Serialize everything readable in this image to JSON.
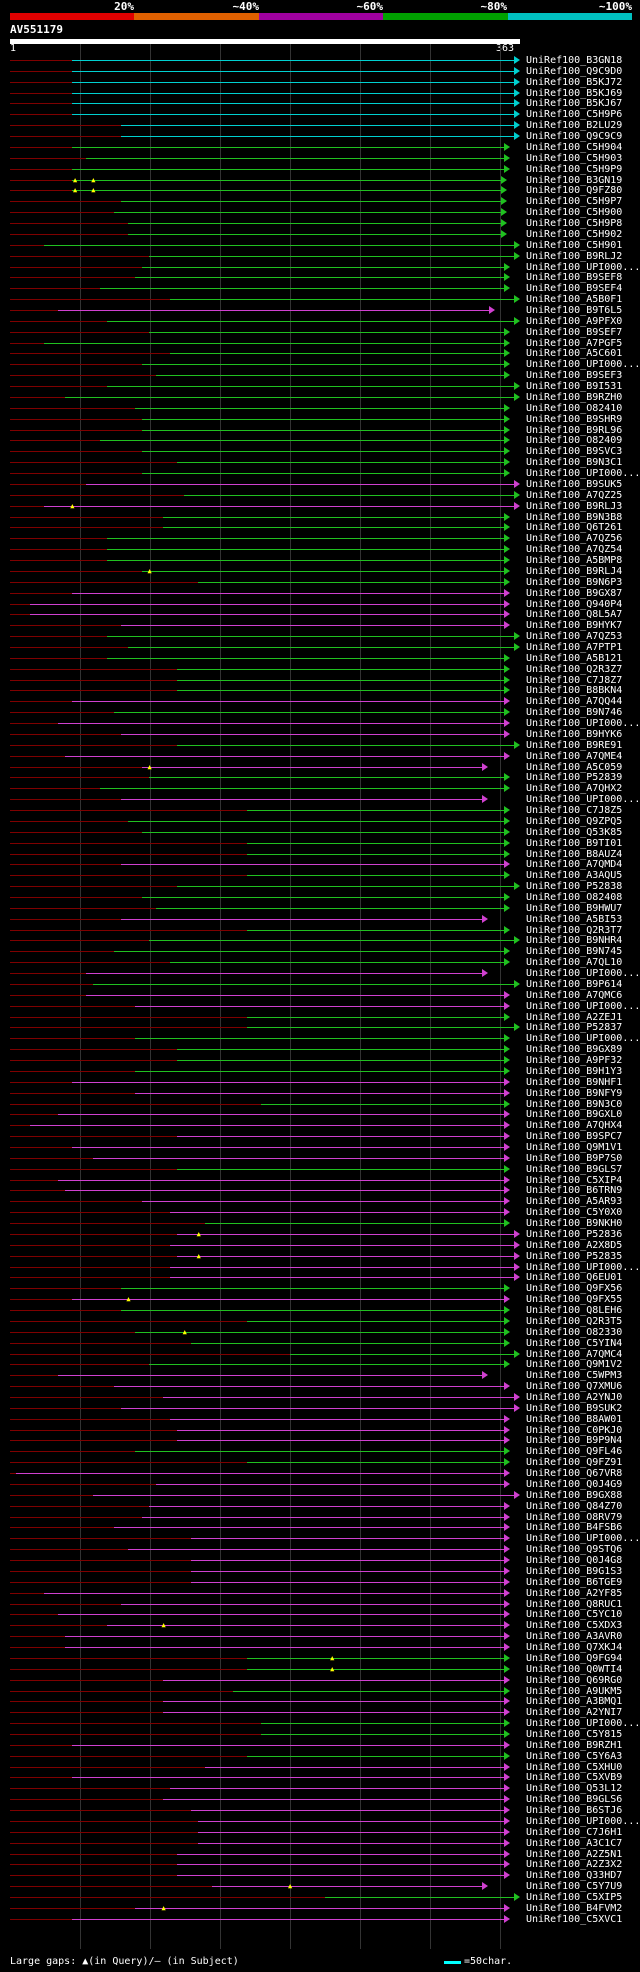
{
  "header": {
    "percent_labels": [
      "20%",
      "~40%",
      "~60%",
      "~80%",
      "~100%"
    ],
    "percent_colors": [
      "#e00000",
      "#e06000",
      "#a000a0",
      "#00a000",
      "#00c0c0"
    ],
    "query_id": "AV551179",
    "ruler_start": "1",
    "ruler_end": "363"
  },
  "footer": {
    "gap_text": "Large gaps: ▲(in Query)/– (in Subject)",
    "legend_text": "=50char."
  },
  "colors": {
    "cyan": "#00d0d0",
    "green": "#20c020",
    "magenta": "#d040d0",
    "prefix": "#7f0000",
    "gap": "#ffff00"
  },
  "hits": [
    {
      "label": "UniRef100_B3GN18",
      "color": "cyan",
      "start": 45,
      "end": 363
    },
    {
      "label": "UniRef100_Q9C9D0",
      "color": "cyan",
      "start": 45,
      "end": 363
    },
    {
      "label": "UniRef100_B5KJ72",
      "color": "cyan",
      "start": 45,
      "end": 363
    },
    {
      "label": "UniRef100_B5KJ69",
      "color": "cyan",
      "start": 45,
      "end": 363
    },
    {
      "label": "UniRef100_B5KJ67",
      "color": "cyan",
      "start": 45,
      "end": 363
    },
    {
      "label": "UniRef100_C5H9P6",
      "color": "cyan",
      "start": 45,
      "end": 363
    },
    {
      "label": "UniRef100_B2LU29",
      "color": "cyan",
      "start": 80,
      "end": 363
    },
    {
      "label": "UniRef100_Q9C9C9",
      "color": "cyan",
      "start": 80,
      "end": 363
    },
    {
      "label": "UniRef100_C5H904",
      "color": "green",
      "start": 45,
      "end": 356
    },
    {
      "label": "UniRef100_C5H903",
      "color": "green",
      "start": 55,
      "end": 356
    },
    {
      "label": "UniRef100_C5H9P9",
      "color": "green",
      "start": 45,
      "end": 356
    },
    {
      "label": "UniRef100_B3GN19",
      "color": "green",
      "start": 45,
      "end": 354,
      "gaps": [
        47,
        60
      ]
    },
    {
      "label": "UniRef100_Q9FZ80",
      "color": "green",
      "start": 45,
      "end": 354,
      "gaps": [
        47,
        60
      ]
    },
    {
      "label": "UniRef100_C5H9P7",
      "color": "green",
      "start": 80,
      "end": 354
    },
    {
      "label": "UniRef100_C5H900",
      "color": "green",
      "start": 75,
      "end": 354
    },
    {
      "label": "UniRef100_C5H9P8",
      "color": "green",
      "start": 85,
      "end": 354
    },
    {
      "label": "UniRef100_C5H902",
      "color": "green",
      "start": 85,
      "end": 354
    },
    {
      "label": "UniRef100_C5H901",
      "color": "green",
      "start": 25,
      "end": 363
    },
    {
      "label": "UniRef100_B9RLJ2",
      "color": "green",
      "start": 100,
      "end": 363
    },
    {
      "label": "UniRef100_UPI000...",
      "color": "green",
      "start": 95,
      "end": 356
    },
    {
      "label": "UniRef100_B9SEF8",
      "color": "green",
      "start": 90,
      "end": 356
    },
    {
      "label": "UniRef100_B9SEF4",
      "color": "green",
      "start": 65,
      "end": 356
    },
    {
      "label": "UniRef100_A5B0F1",
      "color": "green",
      "start": 115,
      "end": 363
    },
    {
      "label": "UniRef100_B9T6L5",
      "color": "magenta",
      "start": 35,
      "end": 345
    },
    {
      "label": "UniRef100_A9PFX0",
      "color": "green",
      "start": 70,
      "end": 363
    },
    {
      "label": "UniRef100_B9SEF7",
      "color": "green",
      "start": 100,
      "end": 356
    },
    {
      "label": "UniRef100_A7PGF5",
      "color": "green",
      "start": 25,
      "end": 356
    },
    {
      "label": "UniRef100_A5C601",
      "color": "green",
      "start": 115,
      "end": 356
    },
    {
      "label": "UniRef100_UPI000...",
      "color": "green",
      "start": 95,
      "end": 356
    },
    {
      "label": "UniRef100_B9SEF3",
      "color": "green",
      "start": 105,
      "end": 356
    },
    {
      "label": "UniRef100_B9I531",
      "color": "green",
      "start": 70,
      "end": 363
    },
    {
      "label": "UniRef100_B9RZH0",
      "color": "green",
      "start": 40,
      "end": 363
    },
    {
      "label": "UniRef100_O82410",
      "color": "green",
      "start": 90,
      "end": 356
    },
    {
      "label": "UniRef100_B9SHR9",
      "color": "green",
      "start": 95,
      "end": 356
    },
    {
      "label": "UniRef100_B9RL96",
      "color": "green",
      "start": 95,
      "end": 356
    },
    {
      "label": "UniRef100_O82409",
      "color": "green",
      "start": 65,
      "end": 356
    },
    {
      "label": "UniRef100_B9SVC3",
      "color": "green",
      "start": 95,
      "end": 356
    },
    {
      "label": "UniRef100_B9N3C1",
      "color": "green",
      "start": 120,
      "end": 356
    },
    {
      "label": "UniRef100_UPI000...",
      "color": "green",
      "start": 95,
      "end": 356
    },
    {
      "label": "UniRef100_B9SUK5",
      "color": "magenta",
      "start": 55,
      "end": 363
    },
    {
      "label": "UniRef100_A7QZ25",
      "color": "green",
      "start": 125,
      "end": 363
    },
    {
      "label": "UniRef100_B9RLJ3",
      "color": "magenta",
      "start": 25,
      "end": 363,
      "gaps": [
        45
      ]
    },
    {
      "label": "UniRef100_B9N3B8",
      "color": "green",
      "start": 110,
      "end": 356
    },
    {
      "label": "UniRef100_Q6T261",
      "color": "green",
      "start": 110,
      "end": 356
    },
    {
      "label": "UniRef100_A7QZ56",
      "color": "green",
      "start": 70,
      "end": 356
    },
    {
      "label": "UniRef100_A7QZ54",
      "color": "green",
      "start": 70,
      "end": 356
    },
    {
      "label": "UniRef100_A5BMP8",
      "color": "green",
      "start": 70,
      "end": 356
    },
    {
      "label": "UniRef100_B9RLJ4",
      "color": "green",
      "start": 95,
      "end": 356,
      "gaps": [
        100
      ]
    },
    {
      "label": "UniRef100_B9N6P3",
      "color": "green",
      "start": 135,
      "end": 356
    },
    {
      "label": "UniRef100_B9GX87",
      "color": "magenta",
      "start": 45,
      "end": 356
    },
    {
      "label": "UniRef100_Q940P4",
      "color": "magenta",
      "start": 15,
      "end": 356
    },
    {
      "label": "UniRef100_Q8L5A7",
      "color": "magenta",
      "start": 15,
      "end": 356
    },
    {
      "label": "UniRef100_B9HYK7",
      "color": "magenta",
      "start": 80,
      "end": 356
    },
    {
      "label": "UniRef100_A7QZ53",
      "color": "green",
      "start": 70,
      "end": 363
    },
    {
      "label": "UniRef100_A7PTP1",
      "color": "green",
      "start": 85,
      "end": 363
    },
    {
      "label": "UniRef100_A5B121",
      "color": "green",
      "start": 70,
      "end": 356
    },
    {
      "label": "UniRef100_Q2R3Z7",
      "color": "green",
      "start": 120,
      "end": 356
    },
    {
      "label": "UniRef100_C7J8Z7",
      "color": "green",
      "start": 120,
      "end": 356
    },
    {
      "label": "UniRef100_B8BKN4",
      "color": "green",
      "start": 120,
      "end": 356
    },
    {
      "label": "UniRef100_A7QQ44",
      "color": "magenta",
      "start": 45,
      "end": 356
    },
    {
      "label": "UniRef100_B9N746",
      "color": "green",
      "start": 75,
      "end": 356
    },
    {
      "label": "UniRef100_UPI000...",
      "color": "magenta",
      "start": 35,
      "end": 356
    },
    {
      "label": "UniRef100_B9HYK6",
      "color": "magenta",
      "start": 80,
      "end": 356
    },
    {
      "label": "UniRef100_B9RE91",
      "color": "green",
      "start": 120,
      "end": 363
    },
    {
      "label": "UniRef100_A7QME4",
      "color": "magenta",
      "start": 40,
      "end": 356
    },
    {
      "label": "UniRef100_A5C059",
      "color": "magenta",
      "start": 95,
      "end": 340,
      "gaps": [
        100
      ]
    },
    {
      "label": "UniRef100_P52839",
      "color": "green",
      "start": 100,
      "end": 356
    },
    {
      "label": "UniRef100_A7QHX2",
      "color": "green",
      "start": 65,
      "end": 356
    },
    {
      "label": "UniRef100_UPI000...",
      "color": "magenta",
      "start": 80,
      "end": 340
    },
    {
      "label": "UniRef100_C7J8Z5",
      "color": "green",
      "start": 170,
      "end": 356
    },
    {
      "label": "UniRef100_Q9ZPQ5",
      "color": "green",
      "start": 85,
      "end": 356
    },
    {
      "label": "UniRef100_Q53K85",
      "color": "green",
      "start": 95,
      "end": 356
    },
    {
      "label": "UniRef100_B9TI01",
      "color": "green",
      "start": 170,
      "end": 356
    },
    {
      "label": "UniRef100_B8AUZ4",
      "color": "green",
      "start": 170,
      "end": 356
    },
    {
      "label": "UniRef100_A7QMD4",
      "color": "magenta",
      "start": 80,
      "end": 356
    },
    {
      "label": "UniRef100_A3AQU5",
      "color": "green",
      "start": 170,
      "end": 356
    },
    {
      "label": "UniRef100_P52838",
      "color": "green",
      "start": 120,
      "end": 363
    },
    {
      "label": "UniRef100_O82408",
      "color": "green",
      "start": 95,
      "end": 356
    },
    {
      "label": "UniRef100_B9HWU7",
      "color": "green",
      "start": 105,
      "end": 356
    },
    {
      "label": "UniRef100_A5BI53",
      "color": "magenta",
      "start": 80,
      "end": 340
    },
    {
      "label": "UniRef100_Q2R3T7",
      "color": "green",
      "start": 170,
      "end": 356
    },
    {
      "label": "UniRef100_B9NHR4",
      "color": "green",
      "start": 100,
      "end": 363
    },
    {
      "label": "UniRef100_B9N745",
      "color": "green",
      "start": 75,
      "end": 356
    },
    {
      "label": "UniRef100_A7QL10",
      "color": "green",
      "start": 115,
      "end": 356
    },
    {
      "label": "UniRef100_UPI000...",
      "color": "magenta",
      "start": 55,
      "end": 340
    },
    {
      "label": "UniRef100_B9P614",
      "color": "green",
      "start": 60,
      "end": 363
    },
    {
      "label": "UniRef100_A7QMC6",
      "color": "magenta",
      "start": 55,
      "end": 356
    },
    {
      "label": "UniRef100_UPI000...",
      "color": "magenta",
      "start": 90,
      "end": 356
    },
    {
      "label": "UniRef100_A2ZEJ1",
      "color": "green",
      "start": 170,
      "end": 356
    },
    {
      "label": "UniRef100_P52837",
      "color": "green",
      "start": 170,
      "end": 363
    },
    {
      "label": "UniRef100_UPI000...",
      "color": "green",
      "start": 90,
      "end": 356
    },
    {
      "label": "UniRef100_B9GX89",
      "color": "green",
      "start": 120,
      "end": 356
    },
    {
      "label": "UniRef100_A9PF32",
      "color": "green",
      "start": 120,
      "end": 356
    },
    {
      "label": "UniRef100_B9H1Y3",
      "color": "green",
      "start": 90,
      "end": 356
    },
    {
      "label": "UniRef100_B9NHF1",
      "color": "magenta",
      "start": 45,
      "end": 356
    },
    {
      "label": "UniRef100_B9NFY9",
      "color": "magenta",
      "start": 90,
      "end": 356
    },
    {
      "label": "UniRef100_B9N3C0",
      "color": "green",
      "start": 180,
      "end": 356
    },
    {
      "label": "UniRef100_B9GXL0",
      "color": "magenta",
      "start": 35,
      "end": 356
    },
    {
      "label": "UniRef100_A7QHX4",
      "color": "magenta",
      "start": 15,
      "end": 356
    },
    {
      "label": "UniRef100_B9SPC7",
      "color": "magenta",
      "start": 120,
      "end": 356
    },
    {
      "label": "UniRef100_Q9M1V1",
      "color": "magenta",
      "start": 45,
      "end": 356
    },
    {
      "label": "UniRef100_B9P7S0",
      "color": "magenta",
      "start": 60,
      "end": 356
    },
    {
      "label": "UniRef100_B9GLS7",
      "color": "green",
      "start": 120,
      "end": 356
    },
    {
      "label": "UniRef100_C5XIP4",
      "color": "magenta",
      "start": 35,
      "end": 356
    },
    {
      "label": "UniRef100_B6TRN9",
      "color": "magenta",
      "start": 40,
      "end": 356
    },
    {
      "label": "UniRef100_A5AR93",
      "color": "magenta",
      "start": 95,
      "end": 356
    },
    {
      "label": "UniRef100_C5Y0X0",
      "color": "magenta",
      "start": 115,
      "end": 356
    },
    {
      "label": "UniRef100_B9NKH0",
      "color": "green",
      "start": 140,
      "end": 356
    },
    {
      "label": "UniRef100_P52836",
      "color": "magenta",
      "start": 120,
      "end": 363,
      "gaps": [
        135
      ]
    },
    {
      "label": "UniRef100_A2X8D5",
      "color": "magenta",
      "start": 115,
      "end": 363
    },
    {
      "label": "UniRef100_P52835",
      "color": "magenta",
      "start": 120,
      "end": 363,
      "gaps": [
        135
      ]
    },
    {
      "label": "UniRef100_UPI000...",
      "color": "magenta",
      "start": 115,
      "end": 363
    },
    {
      "label": "UniRef100_Q6EU01",
      "color": "magenta",
      "start": 115,
      "end": 363
    },
    {
      "label": "UniRef100_Q9FX56",
      "color": "green",
      "start": 80,
      "end": 356
    },
    {
      "label": "UniRef100_Q9FX55",
      "color": "magenta",
      "start": 45,
      "end": 356,
      "gaps": [
        85
      ]
    },
    {
      "label": "UniRef100_Q8LEH6",
      "color": "green",
      "start": 80,
      "end": 356
    },
    {
      "label": "UniRef100_Q2R3T5",
      "color": "green",
      "start": 170,
      "end": 356
    },
    {
      "label": "UniRef100_O82330",
      "color": "green",
      "start": 90,
      "end": 356,
      "gaps": [
        125
      ]
    },
    {
      "label": "UniRef100_C5YIN4",
      "color": "green",
      "start": 130,
      "end": 356
    },
    {
      "label": "UniRef100_A7QMC4",
      "color": "green",
      "start": 200,
      "end": 363
    },
    {
      "label": "UniRef100_Q9M1V2",
      "color": "green",
      "start": 100,
      "end": 356
    },
    {
      "label": "UniRef100_C5WPM3",
      "color": "magenta",
      "start": 35,
      "end": 340
    },
    {
      "label": "UniRef100_Q7XMU6",
      "color": "magenta",
      "start": 75,
      "end": 356
    },
    {
      "label": "UniRef100_A2YNJ0",
      "color": "magenta",
      "start": 110,
      "end": 363
    },
    {
      "label": "UniRef100_B9SUK2",
      "color": "magenta",
      "start": 80,
      "end": 363
    },
    {
      "label": "UniRef100_B8AW01",
      "color": "magenta",
      "start": 115,
      "end": 356
    },
    {
      "label": "UniRef100_C0PKJ0",
      "color": "magenta",
      "start": 120,
      "end": 356
    },
    {
      "label": "UniRef100_B9P9N4",
      "color": "magenta",
      "start": 120,
      "end": 356
    },
    {
      "label": "UniRef100_Q9FL46",
      "color": "green",
      "start": 90,
      "end": 356
    },
    {
      "label": "UniRef100_Q9FZ91",
      "color": "green",
      "start": 170,
      "end": 356
    },
    {
      "label": "UniRef100_Q67VR8",
      "color": "magenta",
      "start": 5,
      "end": 356
    },
    {
      "label": "UniRef100_Q0J4G9",
      "color": "magenta",
      "start": 105,
      "end": 356
    },
    {
      "label": "UniRef100_B9GX88",
      "color": "magenta",
      "start": 60,
      "end": 363
    },
    {
      "label": "UniRef100_Q84Z70",
      "color": "magenta",
      "start": 100,
      "end": 356
    },
    {
      "label": "UniRef100_O8RV79",
      "color": "magenta",
      "start": 95,
      "end": 356
    },
    {
      "label": "UniRef100_B4FSB6",
      "color": "magenta",
      "start": 75,
      "end": 356
    },
    {
      "label": "UniRef100_UPI000...",
      "color": "magenta",
      "start": 130,
      "end": 356
    },
    {
      "label": "UniRef100_Q9STQ6",
      "color": "magenta",
      "start": 85,
      "end": 356
    },
    {
      "label": "UniRef100_Q0J4G8",
      "color": "magenta",
      "start": 130,
      "end": 356
    },
    {
      "label": "UniRef100_B9G1S3",
      "color": "magenta",
      "start": 130,
      "end": 356
    },
    {
      "label": "UniRef100_B6TGE9",
      "color": "magenta",
      "start": 130,
      "end": 356
    },
    {
      "label": "UniRef100_A2YF85",
      "color": "magenta",
      "start": 25,
      "end": 356
    },
    {
      "label": "UniRef100_Q8RUC1",
      "color": "magenta",
      "start": 80,
      "end": 356
    },
    {
      "label": "UniRef100_C5YC10",
      "color": "magenta",
      "start": 35,
      "end": 356
    },
    {
      "label": "UniRef100_C5XDX3",
      "color": "magenta",
      "start": 70,
      "end": 356,
      "gaps": [
        110
      ]
    },
    {
      "label": "UniRef100_A3AVR0",
      "color": "magenta",
      "start": 40,
      "end": 356
    },
    {
      "label": "UniRef100_Q7XKJ4",
      "color": "magenta",
      "start": 40,
      "end": 356
    },
    {
      "label": "UniRef100_Q9FG94",
      "color": "green",
      "start": 170,
      "end": 356,
      "gaps": [
        230
      ]
    },
    {
      "label": "UniRef100_Q0WTI4",
      "color": "green",
      "start": 170,
      "end": 356,
      "gaps": [
        230
      ]
    },
    {
      "label": "UniRef100_Q69RG0",
      "color": "magenta",
      "start": 110,
      "end": 356
    },
    {
      "label": "UniRef100_A9UKM5",
      "color": "green",
      "start": 160,
      "end": 356
    },
    {
      "label": "UniRef100_A3BMQ1",
      "color": "magenta",
      "start": 110,
      "end": 356
    },
    {
      "label": "UniRef100_A2YNI7",
      "color": "magenta",
      "start": 110,
      "end": 356
    },
    {
      "label": "UniRef100_UPI000...",
      "color": "green",
      "start": 180,
      "end": 356
    },
    {
      "label": "UniRef100_C5Y815",
      "color": "green",
      "start": 180,
      "end": 356
    },
    {
      "label": "UniRef100_B9RZH1",
      "color": "magenta",
      "start": 45,
      "end": 356
    },
    {
      "label": "UniRef100_C5Y6A3",
      "color": "green",
      "start": 170,
      "end": 356
    },
    {
      "label": "UniRef100_C5XHU0",
      "color": "magenta",
      "start": 140,
      "end": 356
    },
    {
      "label": "UniRef100_C5XVB9",
      "color": "magenta",
      "start": 45,
      "end": 356
    },
    {
      "label": "UniRef100_Q53L12",
      "color": "magenta",
      "start": 115,
      "end": 356
    },
    {
      "label": "UniRef100_B9GLS6",
      "color": "magenta",
      "start": 110,
      "end": 356
    },
    {
      "label": "UniRef100_B6STJ6",
      "color": "magenta",
      "start": 130,
      "end": 356
    },
    {
      "label": "UniRef100_UPI000...",
      "color": "magenta",
      "start": 135,
      "end": 356
    },
    {
      "label": "UniRef100_C7J6H1",
      "color": "magenta",
      "start": 135,
      "end": 356
    },
    {
      "label": "UniRef100_A3C1C7",
      "color": "magenta",
      "start": 135,
      "end": 356
    },
    {
      "label": "UniRef100_A2Z5N1",
      "color": "magenta",
      "start": 120,
      "end": 356
    },
    {
      "label": "UniRef100_A2Z3X2",
      "color": "magenta",
      "start": 120,
      "end": 356
    },
    {
      "label": "UniRef100_Q33HD7",
      "color": "magenta",
      "start": 120,
      "end": 356
    },
    {
      "label": "UniRef100_C5Y7U9",
      "color": "magenta",
      "start": 145,
      "end": 340,
      "gaps": [
        200
      ]
    },
    {
      "label": "UniRef100_C5XIP5",
      "color": "green",
      "start": 225,
      "end": 363
    },
    {
      "label": "UniRef100_B4FVM2",
      "color": "magenta",
      "start": 90,
      "end": 356,
      "gaps": [
        110
      ]
    },
    {
      "label": "UniRef100_C5XVC1",
      "color": "magenta",
      "start": 45,
      "end": 356
    }
  ]
}
